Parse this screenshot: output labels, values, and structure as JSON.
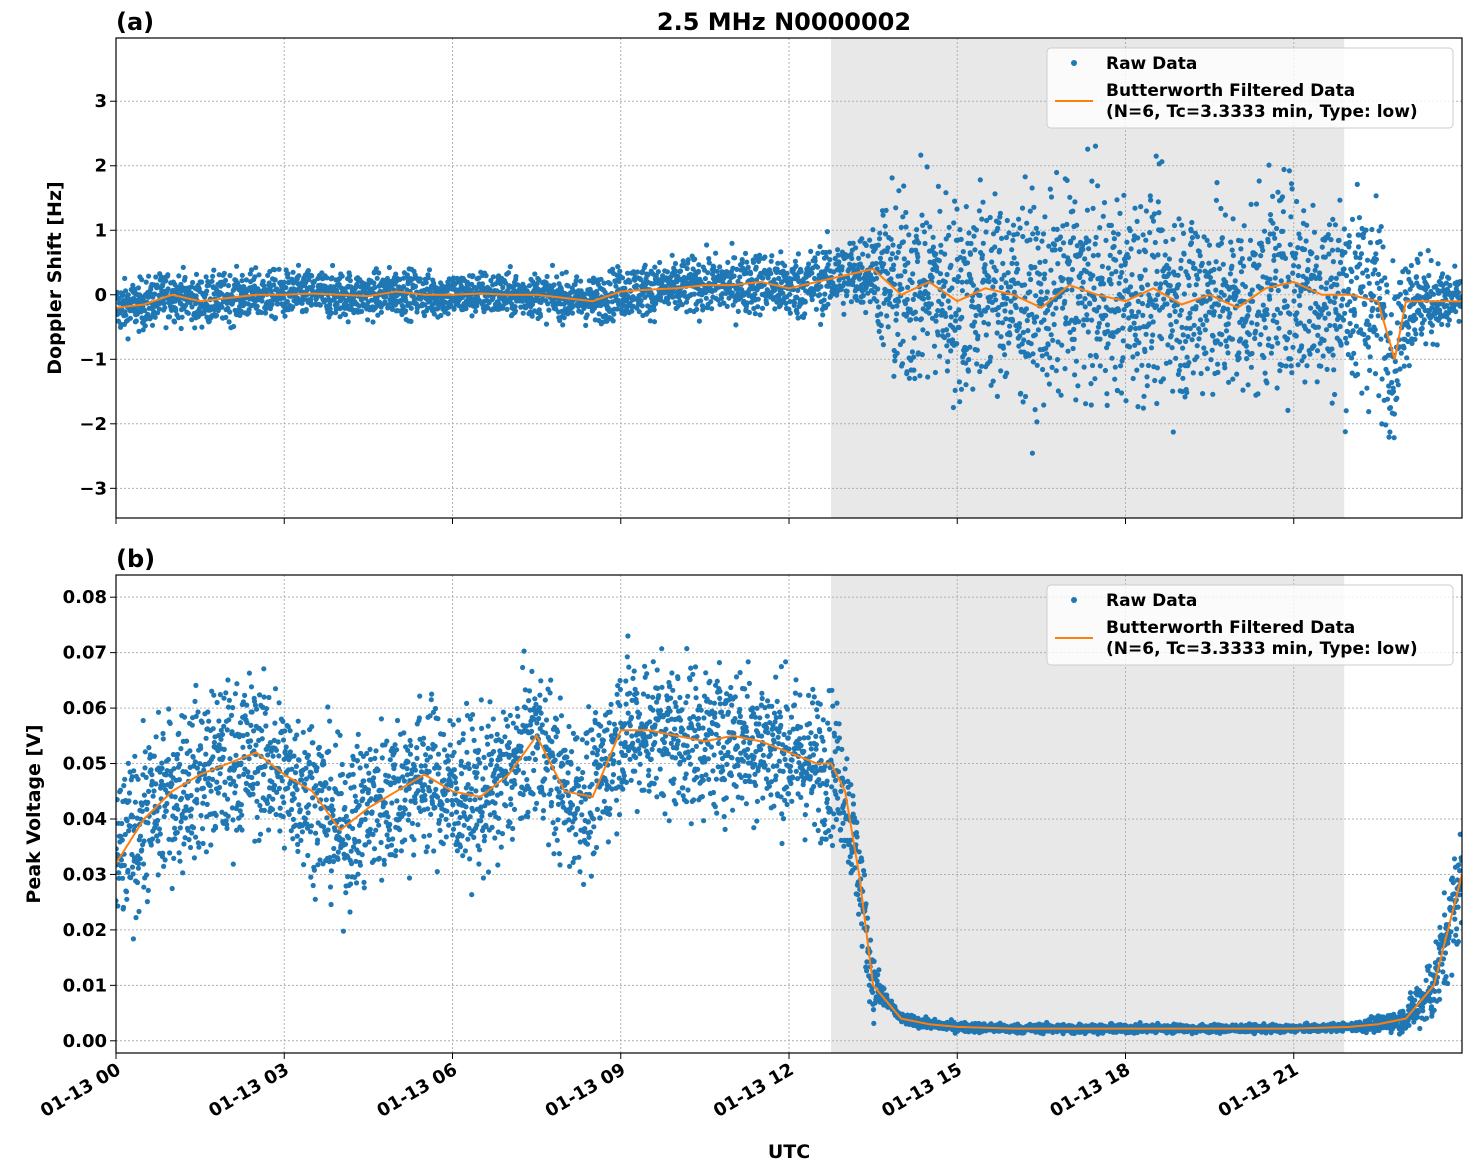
{
  "title": "2.5 MHz N0000002",
  "xlabel": "UTC",
  "colors": {
    "raw": "#1f77b4",
    "filtered": "#ff7f0e",
    "shade": "#e8e8e8"
  },
  "legend": {
    "raw": "Raw Data",
    "filtered_line1": "Butterworth Filtered Data",
    "filtered_line2": "(N=6, Tc=3.3333 min, Type: low)"
  },
  "chart_data": [
    {
      "type": "scatter",
      "panel_label": "(a)",
      "ylabel": "Doppler Shift [Hz]",
      "xlim_hours": [
        0,
        24
      ],
      "ylim": [
        -3.46,
        3.98
      ],
      "yticks": [
        -3,
        -2,
        -1,
        0,
        1,
        2,
        3
      ],
      "ytick_labels": [
        "−3",
        "−2",
        "−1",
        "0",
        "1",
        "2",
        "3"
      ],
      "xtick_hours": [
        0,
        3,
        6,
        9,
        12,
        15,
        18,
        21
      ],
      "xtick_labels": [
        "01-13 00",
        "01-13 03",
        "01-13 06",
        "01-13 09",
        "01-13 12",
        "01-13 15",
        "01-13 18",
        "01-13 21"
      ],
      "shaded_span_hours": [
        12.75,
        21.9
      ],
      "grid": true,
      "legend_position": "top-right",
      "filtered_hours": [
        0,
        0.5,
        1,
        1.5,
        2,
        2.5,
        3,
        3.5,
        4,
        4.5,
        5,
        5.5,
        6,
        6.5,
        7,
        7.5,
        8,
        8.5,
        9,
        9.5,
        10,
        10.5,
        11,
        11.5,
        12,
        12.5,
        13,
        13.5,
        14,
        14.5,
        15,
        15.5,
        16,
        16.5,
        17,
        17.5,
        18,
        18.5,
        19,
        19.5,
        20,
        20.5,
        21,
        21.5,
        22,
        22.5,
        22.8,
        23,
        23.5,
        24
      ],
      "filtered_values": [
        -0.2,
        -0.15,
        0.0,
        -0.1,
        -0.05,
        0.0,
        0.0,
        0.02,
        0.0,
        -0.02,
        0.05,
        0.0,
        0.0,
        0.02,
        0.0,
        0.0,
        -0.05,
        -0.1,
        0.05,
        0.08,
        0.1,
        0.15,
        0.15,
        0.2,
        0.1,
        0.2,
        0.3,
        0.4,
        0.0,
        0.2,
        -0.1,
        0.1,
        0.0,
        -0.2,
        0.15,
        0.0,
        -0.1,
        0.1,
        -0.15,
        0.0,
        -0.2,
        0.1,
        0.2,
        0.0,
        0.0,
        -0.1,
        -1.0,
        -0.1,
        -0.1,
        -0.1
      ],
      "raw_spread_hours": [
        0,
        8,
        9,
        12,
        13.5,
        13.8,
        22.5,
        23,
        24
      ],
      "raw_spread": [
        0.35,
        0.3,
        0.35,
        0.45,
        0.55,
        1.4,
        1.4,
        0.8,
        0.3
      ]
    },
    {
      "type": "scatter",
      "panel_label": "(b)",
      "ylabel": "Peak Voltage [V]",
      "xlim_hours": [
        0,
        24
      ],
      "ylim": [
        -0.0022,
        0.084
      ],
      "yticks": [
        0,
        0.01,
        0.02,
        0.03,
        0.04,
        0.05,
        0.06,
        0.07,
        0.08
      ],
      "ytick_labels": [
        "0.00",
        "0.01",
        "0.02",
        "0.03",
        "0.04",
        "0.05",
        "0.06",
        "0.07",
        "0.08"
      ],
      "xtick_hours": [
        0,
        3,
        6,
        9,
        12,
        15,
        18,
        21
      ],
      "xtick_labels": [
        "01-13 00",
        "01-13 03",
        "01-13 06",
        "01-13 09",
        "01-13 12",
        "01-13 15",
        "01-13 18",
        "01-13 21"
      ],
      "shaded_span_hours": [
        12.75,
        21.9
      ],
      "grid": true,
      "legend_position": "top-right",
      "filtered_hours": [
        0,
        0.5,
        1,
        1.5,
        2,
        2.5,
        3,
        3.5,
        4,
        4.5,
        5,
        5.5,
        6,
        6.5,
        7,
        7.5,
        8,
        8.5,
        9,
        9.5,
        10,
        10.5,
        11,
        11.5,
        12,
        12.5,
        12.75,
        13,
        13.25,
        13.5,
        14,
        14.5,
        15,
        16,
        17,
        18,
        19,
        20,
        21,
        22,
        22.5,
        23,
        23.5,
        24
      ],
      "filtered_values": [
        0.032,
        0.04,
        0.045,
        0.048,
        0.05,
        0.052,
        0.048,
        0.045,
        0.038,
        0.042,
        0.045,
        0.048,
        0.045,
        0.044,
        0.048,
        0.055,
        0.045,
        0.044,
        0.056,
        0.056,
        0.055,
        0.054,
        0.055,
        0.054,
        0.052,
        0.05,
        0.05,
        0.045,
        0.03,
        0.01,
        0.004,
        0.003,
        0.0025,
        0.0022,
        0.0022,
        0.0022,
        0.0022,
        0.0022,
        0.0022,
        0.0025,
        0.003,
        0.004,
        0.01,
        0.03
      ],
      "raw_spread_hours": [
        0,
        12.75,
        13.3,
        13.8,
        22,
        23,
        24
      ],
      "raw_spread": [
        0.013,
        0.012,
        0.008,
        0.0008,
        0.0006,
        0.002,
        0.01
      ]
    }
  ]
}
